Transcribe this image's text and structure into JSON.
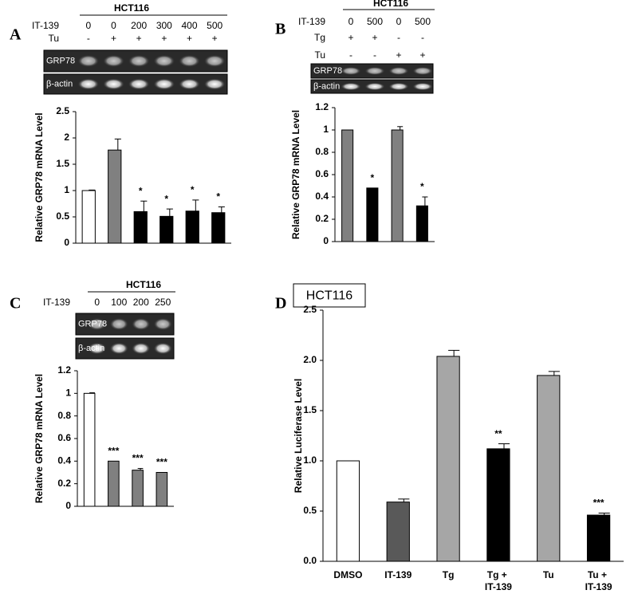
{
  "chart_data": [
    {
      "type": "bar",
      "panel": "A",
      "cell_line": "HCT116",
      "conditions": [
        {
          "label": "IT-139",
          "values": [
            0,
            0,
            200,
            300,
            400,
            500
          ]
        },
        {
          "label": "Tu",
          "values": [
            "-",
            "+",
            "+",
            "+",
            "+",
            "+"
          ]
        }
      ],
      "gel_bands": [
        "GRP78",
        "β-actin"
      ],
      "ylabel": "Relative GRP78 mRNA Level",
      "categories": [
        null,
        null,
        null,
        null,
        null,
        null
      ],
      "values": [
        1.0,
        1.77,
        0.6,
        0.51,
        0.61,
        0.58
      ],
      "errors": [
        0.01,
        0.21,
        0.2,
        0.14,
        0.21,
        0.11
      ],
      "colors": [
        "#ffffff",
        "#808080",
        "#000000",
        "#000000",
        "#000000",
        "#000000"
      ],
      "annotations": [
        null,
        null,
        "*",
        "*",
        "*",
        "*"
      ],
      "ylim": [
        0,
        2.5
      ],
      "yticks": [
        0,
        0.5,
        1,
        1.5,
        2,
        2.5
      ]
    },
    {
      "type": "bar",
      "panel": "B",
      "cell_line": "HCT116",
      "conditions": [
        {
          "label": "IT-139",
          "values": [
            0,
            500,
            0,
            500
          ]
        },
        {
          "label": "Tg",
          "values": [
            "+",
            "+",
            "-",
            "-"
          ]
        },
        {
          "label": "Tu",
          "values": [
            "-",
            "-",
            "+",
            "+"
          ]
        }
      ],
      "gel_bands": [
        "GRP78",
        "β-actin"
      ],
      "ylabel": "Relative GRP78 mRNA Level",
      "categories": [
        null,
        null,
        null,
        null
      ],
      "values": [
        1.0,
        0.48,
        1.0,
        0.32
      ],
      "errors": [
        0,
        0,
        0.03,
        0.08
      ],
      "colors": [
        "#808080",
        "#000000",
        "#808080",
        "#000000"
      ],
      "annotations": [
        null,
        "*",
        null,
        "*"
      ],
      "ylim": [
        0,
        1.2
      ],
      "yticks": [
        0,
        0.2,
        0.4,
        0.6,
        0.8,
        1,
        1.2
      ]
    },
    {
      "type": "bar",
      "panel": "C",
      "cell_line": "HCT116",
      "conditions": [
        {
          "label": "IT-139",
          "values": [
            0,
            100,
            200,
            250
          ]
        }
      ],
      "gel_bands": [
        "GRP78",
        "β-actin"
      ],
      "ylabel": "Relative GRP78 mRNA Level",
      "categories": [
        null,
        null,
        null,
        null
      ],
      "values": [
        1.0,
        0.4,
        0.32,
        0.3
      ],
      "errors": [
        0.005,
        0,
        0.015,
        0
      ],
      "colors": [
        "#ffffff",
        "#808080",
        "#808080",
        "#808080"
      ],
      "annotations": [
        null,
        "***",
        "***",
        "***"
      ],
      "ylim": [
        0,
        1.2
      ],
      "yticks": [
        0,
        0.2,
        0.4,
        0.6,
        0.8,
        1,
        1.2
      ]
    },
    {
      "type": "bar",
      "panel": "D",
      "title": "HCT116",
      "ylabel": "Relative Luciferase Level",
      "categories": [
        "DMSO",
        "IT-139",
        "Tg",
        "Tg + IT-139",
        "Tu",
        "Tu + IT-139"
      ],
      "values": [
        1.0,
        0.59,
        2.04,
        1.12,
        1.85,
        0.46
      ],
      "errors": [
        0,
        0.03,
        0.06,
        0.05,
        0.04,
        0.02
      ],
      "colors": [
        "#ffffff",
        "#595959",
        "#a6a6a6",
        "#000000",
        "#a6a6a6",
        "#000000"
      ],
      "annotations": [
        null,
        null,
        null,
        "**",
        null,
        "***"
      ],
      "ylim": [
        0,
        2.5
      ],
      "yticks": [
        {
          "value": 0,
          "label": "0.0"
        },
        {
          "value": 0.5,
          "label": "0.5"
        },
        {
          "value": 1,
          "label": "1.0"
        },
        {
          "value": 1.5,
          "label": "1.5"
        },
        {
          "value": 2,
          "label": "2.0"
        },
        {
          "value": 2.5,
          "label": "2.5"
        }
      ]
    }
  ]
}
